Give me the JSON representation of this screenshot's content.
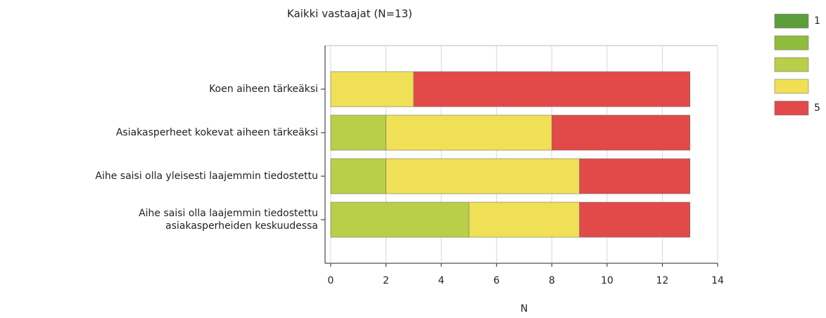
{
  "chart_data": {
    "type": "bar",
    "orientation": "horizontal",
    "stacked": true,
    "title": "Kaikki vastaajat (N=13)",
    "x_label": "N",
    "categories": [
      "Koen aiheen tärkeäksi",
      "Asiakasperheet kokevat aiheen tärkeäksi",
      "Aihe saisi olla yleisesti laajemmin tiedostettu",
      "Aihe saisi olla laajemmin tiedostettu\nasiakasperheiden keskuudessa"
    ],
    "series": [
      {
        "name": "1",
        "color": "#5c9e3a",
        "values": [
          0,
          0,
          0,
          0
        ]
      },
      {
        "name": null,
        "color": "#8ebd3e",
        "values": [
          0,
          0,
          0,
          0
        ]
      },
      {
        "name": null,
        "color": "#b9cf4a",
        "values": [
          0,
          2,
          2,
          5
        ]
      },
      {
        "name": null,
        "color": "#efe055",
        "values": [
          3,
          6,
          7,
          4
        ]
      },
      {
        "name": "5",
        "color": "#e24a4a",
        "values": [
          10,
          5,
          4,
          4
        ]
      }
    ],
    "xlim": [
      0,
      14
    ],
    "xticks": [
      0,
      2,
      4,
      6,
      8,
      10,
      12,
      14
    ],
    "grid": true,
    "legend": "right"
  }
}
